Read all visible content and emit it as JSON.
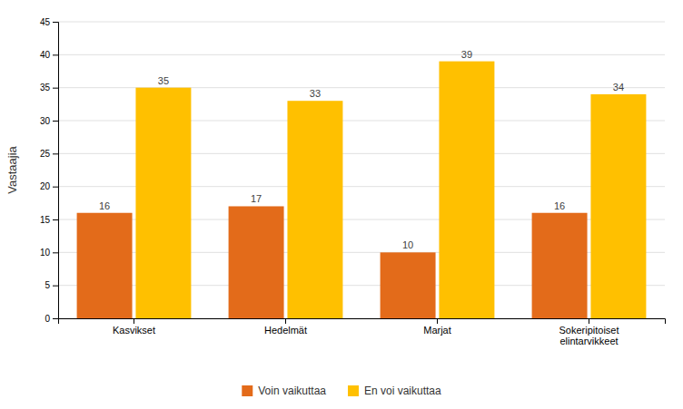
{
  "chart_data": {
    "type": "bar",
    "categories": [
      "Kasvikset",
      "Hedelmät",
      "Marjat",
      "Sokeripitoiset\nelintarvikkeet"
    ],
    "series": [
      {
        "name": "Voin vaikuttaa",
        "color": "#E36B1A",
        "values": [
          16,
          17,
          10,
          16
        ]
      },
      {
        "name": "En voi vaikuttaa",
        "color": "#FFC000",
        "values": [
          35,
          33,
          39,
          34
        ]
      }
    ],
    "ylabel": "Vastaajia",
    "ylim": [
      0,
      45
    ],
    "yticks": [
      0,
      5,
      10,
      15,
      20,
      25,
      30,
      35,
      40,
      45
    ],
    "grid": true,
    "legend": "bottom",
    "data_labels": true
  }
}
